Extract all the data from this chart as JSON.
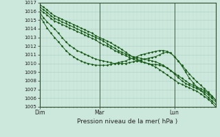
{
  "title": "Pression niveau de la mer( hPa )",
  "background_color": "#cce8dc",
  "grid_major_color": "#aacfc0",
  "grid_minor_color": "#c0ddd0",
  "line_color": "#1a5c1a",
  "ylim": [
    1005,
    1017
  ],
  "ytick_major": [
    1005,
    1006,
    1007,
    1008,
    1009,
    1010,
    1011,
    1012,
    1013,
    1014,
    1015,
    1016,
    1017
  ],
  "num_steps": 48,
  "day_labels": [
    "Dim",
    "Mar",
    "Lun"
  ],
  "day_positions": [
    0,
    16,
    36
  ],
  "series": [
    [
      1016.8,
      1016.5,
      1016.2,
      1015.8,
      1015.5,
      1015.3,
      1015.1,
      1014.9,
      1014.7,
      1014.5,
      1014.3,
      1014.1,
      1013.9,
      1013.7,
      1013.5,
      1013.2,
      1013.0,
      1012.8,
      1012.6,
      1012.4,
      1012.1,
      1011.9,
      1011.6,
      1011.3,
      1011.0,
      1010.7,
      1010.5,
      1010.3,
      1010.1,
      1010.0,
      1009.8,
      1009.6,
      1009.3,
      1009.0,
      1008.7,
      1008.4,
      1008.1,
      1007.8,
      1007.6,
      1007.4,
      1007.2,
      1007.0,
      1006.8,
      1006.5,
      1006.2,
      1005.9,
      1005.5,
      1005.0
    ],
    [
      1016.5,
      1016.2,
      1015.9,
      1015.5,
      1015.2,
      1015.0,
      1014.8,
      1014.6,
      1014.4,
      1014.2,
      1014.0,
      1013.8,
      1013.6,
      1013.4,
      1013.2,
      1013.0,
      1012.8,
      1012.6,
      1012.3,
      1012.0,
      1011.8,
      1011.5,
      1011.3,
      1011.1,
      1010.9,
      1010.8,
      1010.7,
      1010.6,
      1010.5,
      1010.4,
      1010.3,
      1010.2,
      1010.0,
      1009.8,
      1009.5,
      1009.2,
      1008.9,
      1008.6,
      1008.3,
      1008.0,
      1007.7,
      1007.5,
      1007.3,
      1007.1,
      1006.9,
      1006.6,
      1006.2,
      1005.8
    ],
    [
      1016.2,
      1015.9,
      1015.6,
      1015.2,
      1014.9,
      1014.7,
      1014.5,
      1014.3,
      1014.1,
      1013.9,
      1013.7,
      1013.5,
      1013.3,
      1013.1,
      1012.9,
      1012.7,
      1012.4,
      1012.2,
      1012.0,
      1011.8,
      1011.5,
      1011.3,
      1011.1,
      1010.9,
      1010.7,
      1010.5,
      1010.3,
      1010.2,
      1010.1,
      1010.0,
      1009.9,
      1009.9,
      1009.8,
      1009.7,
      1009.5,
      1009.2,
      1008.8,
      1008.4,
      1008.0,
      1007.7,
      1007.5,
      1007.3,
      1007.1,
      1006.9,
      1006.7,
      1006.4,
      1006.0,
      1005.6
    ],
    [
      1015.9,
      1015.3,
      1014.8,
      1014.4,
      1014.0,
      1013.5,
      1013.0,
      1012.5,
      1012.1,
      1011.8,
      1011.5,
      1011.3,
      1011.1,
      1010.9,
      1010.7,
      1010.5,
      1010.4,
      1010.3,
      1010.2,
      1010.1,
      1010.0,
      1010.0,
      1010.0,
      1010.0,
      1010.1,
      1010.2,
      1010.3,
      1010.4,
      1010.5,
      1010.6,
      1010.7,
      1010.8,
      1011.0,
      1011.2,
      1011.3,
      1011.2,
      1010.8,
      1010.3,
      1009.8,
      1009.3,
      1008.8,
      1008.3,
      1007.9,
      1007.5,
      1007.1,
      1006.7,
      1006.3,
      1005.8
    ],
    [
      1015.5,
      1014.8,
      1014.1,
      1013.5,
      1013.0,
      1012.5,
      1012.0,
      1011.5,
      1011.1,
      1010.8,
      1010.5,
      1010.3,
      1010.1,
      1010.0,
      1009.9,
      1009.8,
      1009.8,
      1009.8,
      1009.8,
      1009.9,
      1010.0,
      1010.1,
      1010.2,
      1010.3,
      1010.5,
      1010.6,
      1010.8,
      1011.0,
      1011.1,
      1011.2,
      1011.3,
      1011.4,
      1011.5,
      1011.5,
      1011.4,
      1011.2,
      1010.8,
      1010.3,
      1009.7,
      1009.0,
      1008.3,
      1007.8,
      1007.3,
      1006.9,
      1006.5,
      1006.1,
      1005.7,
      1005.3
    ]
  ]
}
